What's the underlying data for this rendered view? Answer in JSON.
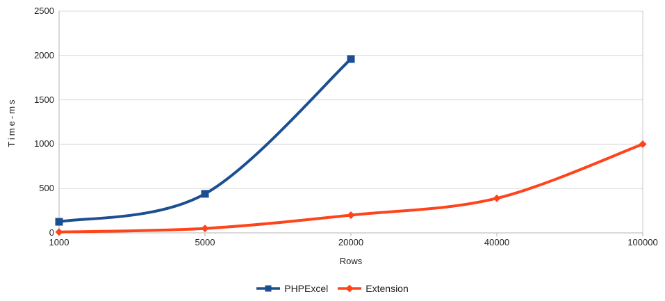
{
  "chart_data": {
    "type": "line",
    "categories": [
      "1000",
      "5000",
      "20000",
      "40000",
      "100000"
    ],
    "series": [
      {
        "name": "PHPExcel",
        "values": [
          125,
          440,
          1960,
          null,
          null
        ],
        "color": "#1b4f91",
        "marker": "square"
      },
      {
        "name": "Extension",
        "values": [
          10,
          50,
          200,
          390,
          1000
        ],
        "color": "#ff431a",
        "marker": "diamond"
      }
    ],
    "title": "",
    "xlabel": "Rows",
    "ylabel": "Time-ms",
    "ylim": [
      0,
      2500
    ],
    "ytick_step": 500,
    "yticks": [
      "0",
      "500",
      "1000",
      "1500",
      "2000",
      "2500"
    ],
    "grid": true,
    "smooth": true,
    "legend_position": "bottom"
  },
  "colors": {
    "grid": "#d9d9d9",
    "axis": "#b3b3b3",
    "plot_border": "#c8c8c8",
    "text": "#1f1f1f",
    "background": "#ffffff"
  }
}
